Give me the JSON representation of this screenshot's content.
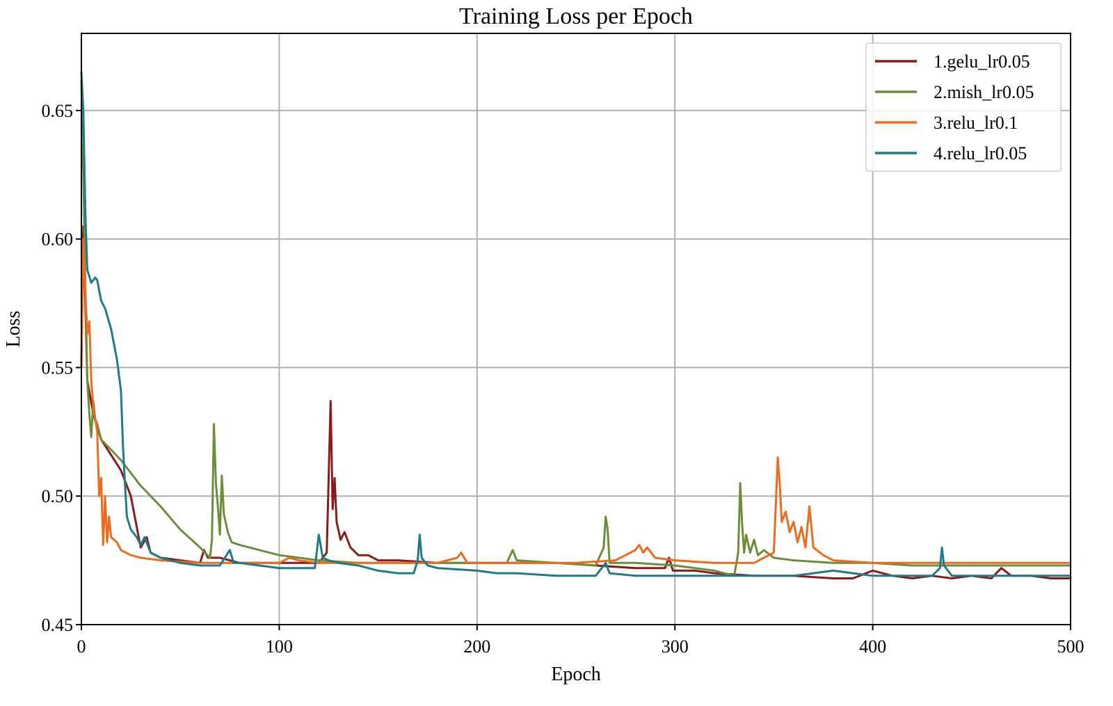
{
  "chart_data": {
    "type": "line",
    "title": "Training Loss per Epoch",
    "xlabel": "Epoch",
    "ylabel": "Loss",
    "xlim": [
      0,
      500
    ],
    "ylim": [
      0.45,
      0.68
    ],
    "xticks": [
      0,
      100,
      200,
      300,
      400,
      500
    ],
    "yticks": [
      0.45,
      0.5,
      0.55,
      0.6,
      0.65
    ],
    "xtick_labels": [
      "0",
      "100",
      "200",
      "300",
      "400",
      "500"
    ],
    "ytick_labels": [
      "0.45",
      "0.50",
      "0.55",
      "0.60",
      "0.65"
    ],
    "grid": true,
    "legend_position": "top-right",
    "series": [
      {
        "name": "1.gelu_lr0.05",
        "color": "#8b1a1a",
        "points": [
          [
            0,
            0.55
          ],
          [
            1,
            0.605
          ],
          [
            3,
            0.545
          ],
          [
            6,
            0.532
          ],
          [
            10,
            0.522
          ],
          [
            15,
            0.516
          ],
          [
            20,
            0.51
          ],
          [
            25,
            0.5
          ],
          [
            28,
            0.488
          ],
          [
            30,
            0.48
          ],
          [
            33,
            0.484
          ],
          [
            35,
            0.478
          ],
          [
            40,
            0.476
          ],
          [
            50,
            0.475
          ],
          [
            60,
            0.474
          ],
          [
            62,
            0.479
          ],
          [
            64,
            0.476
          ],
          [
            70,
            0.476
          ],
          [
            75,
            0.475
          ],
          [
            80,
            0.474
          ],
          [
            100,
            0.474
          ],
          [
            120,
            0.474
          ],
          [
            124,
            0.478
          ],
          [
            126,
            0.537
          ],
          [
            127,
            0.495
          ],
          [
            128,
            0.507
          ],
          [
            129,
            0.49
          ],
          [
            131,
            0.483
          ],
          [
            133,
            0.486
          ],
          [
            136,
            0.48
          ],
          [
            140,
            0.477
          ],
          [
            145,
            0.477
          ],
          [
            150,
            0.475
          ],
          [
            160,
            0.475
          ],
          [
            180,
            0.474
          ],
          [
            200,
            0.474
          ],
          [
            220,
            0.474
          ],
          [
            240,
            0.474
          ],
          [
            260,
            0.473
          ],
          [
            280,
            0.472
          ],
          [
            295,
            0.472
          ],
          [
            297,
            0.476
          ],
          [
            299,
            0.471
          ],
          [
            310,
            0.471
          ],
          [
            320,
            0.47
          ],
          [
            340,
            0.469
          ],
          [
            360,
            0.469
          ],
          [
            380,
            0.468
          ],
          [
            390,
            0.468
          ],
          [
            400,
            0.471
          ],
          [
            410,
            0.469
          ],
          [
            420,
            0.468
          ],
          [
            430,
            0.469
          ],
          [
            440,
            0.468
          ],
          [
            450,
            0.469
          ],
          [
            460,
            0.468
          ],
          [
            465,
            0.472
          ],
          [
            470,
            0.469
          ],
          [
            480,
            0.469
          ],
          [
            490,
            0.468
          ],
          [
            500,
            0.468
          ]
        ]
      },
      {
        "name": "2.mish_lr0.05",
        "color": "#6b8e3a",
        "points": [
          [
            0,
            0.662
          ],
          [
            1,
            0.625
          ],
          [
            2,
            0.582
          ],
          [
            3,
            0.545
          ],
          [
            4,
            0.532
          ],
          [
            5,
            0.523
          ],
          [
            6,
            0.537
          ],
          [
            7,
            0.53
          ],
          [
            8,
            0.528
          ],
          [
            10,
            0.522
          ],
          [
            15,
            0.518
          ],
          [
            20,
            0.514
          ],
          [
            30,
            0.504
          ],
          [
            40,
            0.496
          ],
          [
            50,
            0.487
          ],
          [
            60,
            0.48
          ],
          [
            65,
            0.476
          ],
          [
            66,
            0.483
          ],
          [
            67,
            0.528
          ],
          [
            68,
            0.505
          ],
          [
            69,
            0.496
          ],
          [
            70,
            0.485
          ],
          [
            71,
            0.508
          ],
          [
            72,
            0.493
          ],
          [
            74,
            0.486
          ],
          [
            76,
            0.482
          ],
          [
            80,
            0.481
          ],
          [
            90,
            0.479
          ],
          [
            100,
            0.477
          ],
          [
            110,
            0.476
          ],
          [
            120,
            0.475
          ],
          [
            140,
            0.474
          ],
          [
            160,
            0.474
          ],
          [
            180,
            0.474
          ],
          [
            200,
            0.474
          ],
          [
            215,
            0.474
          ],
          [
            218,
            0.479
          ],
          [
            220,
            0.475
          ],
          [
            240,
            0.474
          ],
          [
            260,
            0.473
          ],
          [
            264,
            0.48
          ],
          [
            265,
            0.492
          ],
          [
            266,
            0.487
          ],
          [
            267,
            0.474
          ],
          [
            280,
            0.474
          ],
          [
            300,
            0.473
          ],
          [
            320,
            0.471
          ],
          [
            330,
            0.469
          ],
          [
            332,
            0.478
          ],
          [
            333,
            0.505
          ],
          [
            334,
            0.489
          ],
          [
            335,
            0.478
          ],
          [
            336,
            0.485
          ],
          [
            338,
            0.478
          ],
          [
            340,
            0.483
          ],
          [
            342,
            0.477
          ],
          [
            345,
            0.479
          ],
          [
            350,
            0.476
          ],
          [
            360,
            0.475
          ],
          [
            380,
            0.474
          ],
          [
            400,
            0.474
          ],
          [
            420,
            0.473
          ],
          [
            440,
            0.473
          ],
          [
            460,
            0.473
          ],
          [
            480,
            0.473
          ],
          [
            500,
            0.473
          ]
        ]
      },
      {
        "name": "3.relu_lr0.1",
        "color": "#ea6c1e",
        "points": [
          [
            0,
            0.55
          ],
          [
            1,
            0.6
          ],
          [
            2,
            0.58
          ],
          [
            3,
            0.563
          ],
          [
            4,
            0.568
          ],
          [
            5,
            0.545
          ],
          [
            6,
            0.535
          ],
          [
            8,
            0.525
          ],
          [
            9,
            0.5
          ],
          [
            10,
            0.507
          ],
          [
            11,
            0.481
          ],
          [
            12,
            0.5
          ],
          [
            13,
            0.482
          ],
          [
            14,
            0.492
          ],
          [
            15,
            0.484
          ],
          [
            18,
            0.482
          ],
          [
            20,
            0.479
          ],
          [
            25,
            0.477
          ],
          [
            30,
            0.476
          ],
          [
            40,
            0.475
          ],
          [
            60,
            0.474
          ],
          [
            80,
            0.474
          ],
          [
            100,
            0.474
          ],
          [
            105,
            0.476
          ],
          [
            110,
            0.475
          ],
          [
            120,
            0.474
          ],
          [
            150,
            0.474
          ],
          [
            180,
            0.474
          ],
          [
            190,
            0.476
          ],
          [
            192,
            0.478
          ],
          [
            195,
            0.474
          ],
          [
            220,
            0.474
          ],
          [
            250,
            0.474
          ],
          [
            270,
            0.475
          ],
          [
            275,
            0.477
          ],
          [
            280,
            0.479
          ],
          [
            282,
            0.481
          ],
          [
            284,
            0.478
          ],
          [
            286,
            0.48
          ],
          [
            290,
            0.476
          ],
          [
            300,
            0.475
          ],
          [
            320,
            0.474
          ],
          [
            340,
            0.474
          ],
          [
            350,
            0.478
          ],
          [
            352,
            0.515
          ],
          [
            353,
            0.505
          ],
          [
            354,
            0.49
          ],
          [
            356,
            0.494
          ],
          [
            358,
            0.486
          ],
          [
            360,
            0.49
          ],
          [
            362,
            0.482
          ],
          [
            364,
            0.488
          ],
          [
            366,
            0.48
          ],
          [
            368,
            0.496
          ],
          [
            370,
            0.48
          ],
          [
            375,
            0.477
          ],
          [
            380,
            0.475
          ],
          [
            400,
            0.474
          ],
          [
            420,
            0.474
          ],
          [
            440,
            0.474
          ],
          [
            460,
            0.474
          ],
          [
            480,
            0.474
          ],
          [
            500,
            0.474
          ]
        ]
      },
      {
        "name": "4.relu_lr0.05",
        "color": "#1f7a8c",
        "points": [
          [
            0,
            0.665
          ],
          [
            1,
            0.65
          ],
          [
            2,
            0.61
          ],
          [
            3,
            0.588
          ],
          [
            5,
            0.583
          ],
          [
            7,
            0.585
          ],
          [
            8,
            0.584
          ],
          [
            10,
            0.576
          ],
          [
            12,
            0.573
          ],
          [
            15,
            0.565
          ],
          [
            18,
            0.553
          ],
          [
            20,
            0.541
          ],
          [
            21,
            0.52
          ],
          [
            22,
            0.505
          ],
          [
            23,
            0.492
          ],
          [
            25,
            0.487
          ],
          [
            28,
            0.484
          ],
          [
            30,
            0.481
          ],
          [
            32,
            0.484
          ],
          [
            35,
            0.478
          ],
          [
            40,
            0.476
          ],
          [
            50,
            0.474
          ],
          [
            60,
            0.473
          ],
          [
            70,
            0.473
          ],
          [
            75,
            0.479
          ],
          [
            77,
            0.474
          ],
          [
            80,
            0.474
          ],
          [
            100,
            0.472
          ],
          [
            110,
            0.472
          ],
          [
            118,
            0.472
          ],
          [
            120,
            0.485
          ],
          [
            122,
            0.476
          ],
          [
            125,
            0.475
          ],
          [
            130,
            0.474
          ],
          [
            140,
            0.473
          ],
          [
            150,
            0.471
          ],
          [
            160,
            0.47
          ],
          [
            168,
            0.47
          ],
          [
            170,
            0.475
          ],
          [
            171,
            0.485
          ],
          [
            172,
            0.476
          ],
          [
            175,
            0.473
          ],
          [
            180,
            0.472
          ],
          [
            200,
            0.471
          ],
          [
            210,
            0.47
          ],
          [
            220,
            0.47
          ],
          [
            240,
            0.469
          ],
          [
            260,
            0.469
          ],
          [
            265,
            0.474
          ],
          [
            267,
            0.47
          ],
          [
            280,
            0.469
          ],
          [
            300,
            0.469
          ],
          [
            320,
            0.469
          ],
          [
            340,
            0.469
          ],
          [
            360,
            0.469
          ],
          [
            370,
            0.47
          ],
          [
            380,
            0.471
          ],
          [
            390,
            0.47
          ],
          [
            400,
            0.469
          ],
          [
            420,
            0.469
          ],
          [
            430,
            0.469
          ],
          [
            434,
            0.472
          ],
          [
            435,
            0.48
          ],
          [
            436,
            0.473
          ],
          [
            440,
            0.469
          ],
          [
            460,
            0.469
          ],
          [
            480,
            0.469
          ],
          [
            500,
            0.469
          ]
        ]
      }
    ]
  }
}
